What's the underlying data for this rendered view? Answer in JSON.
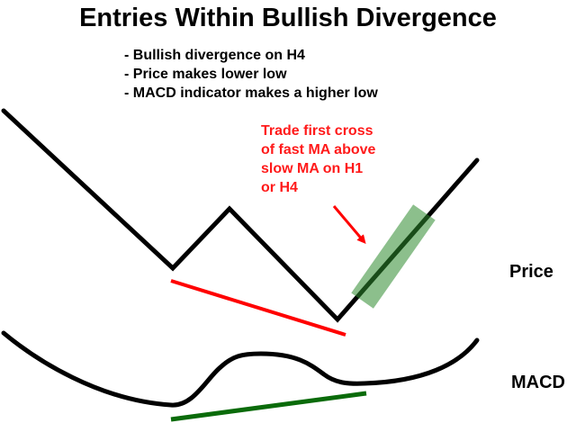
{
  "title": "Entries Within Bullish Divergence",
  "bullets": [
    "- Bullish divergence on H4",
    "- Price makes lower low",
    "- MACD indicator makes a higher low"
  ],
  "annotation": {
    "lines": [
      "Trade first cross",
      "of fast MA above",
      "slow MA on H1",
      "or H4"
    ],
    "color": "#ff1a1a"
  },
  "panels": {
    "price_label": "Price",
    "macd_label": "MACD"
  },
  "colors": {
    "price_line": "#000000",
    "macd_line": "#000000",
    "price_divergence_line": "#ff0000",
    "macd_divergence_line": "#0a6b0a",
    "entry_zone": "#2e8b2e",
    "arrow": "#ff0000"
  }
}
